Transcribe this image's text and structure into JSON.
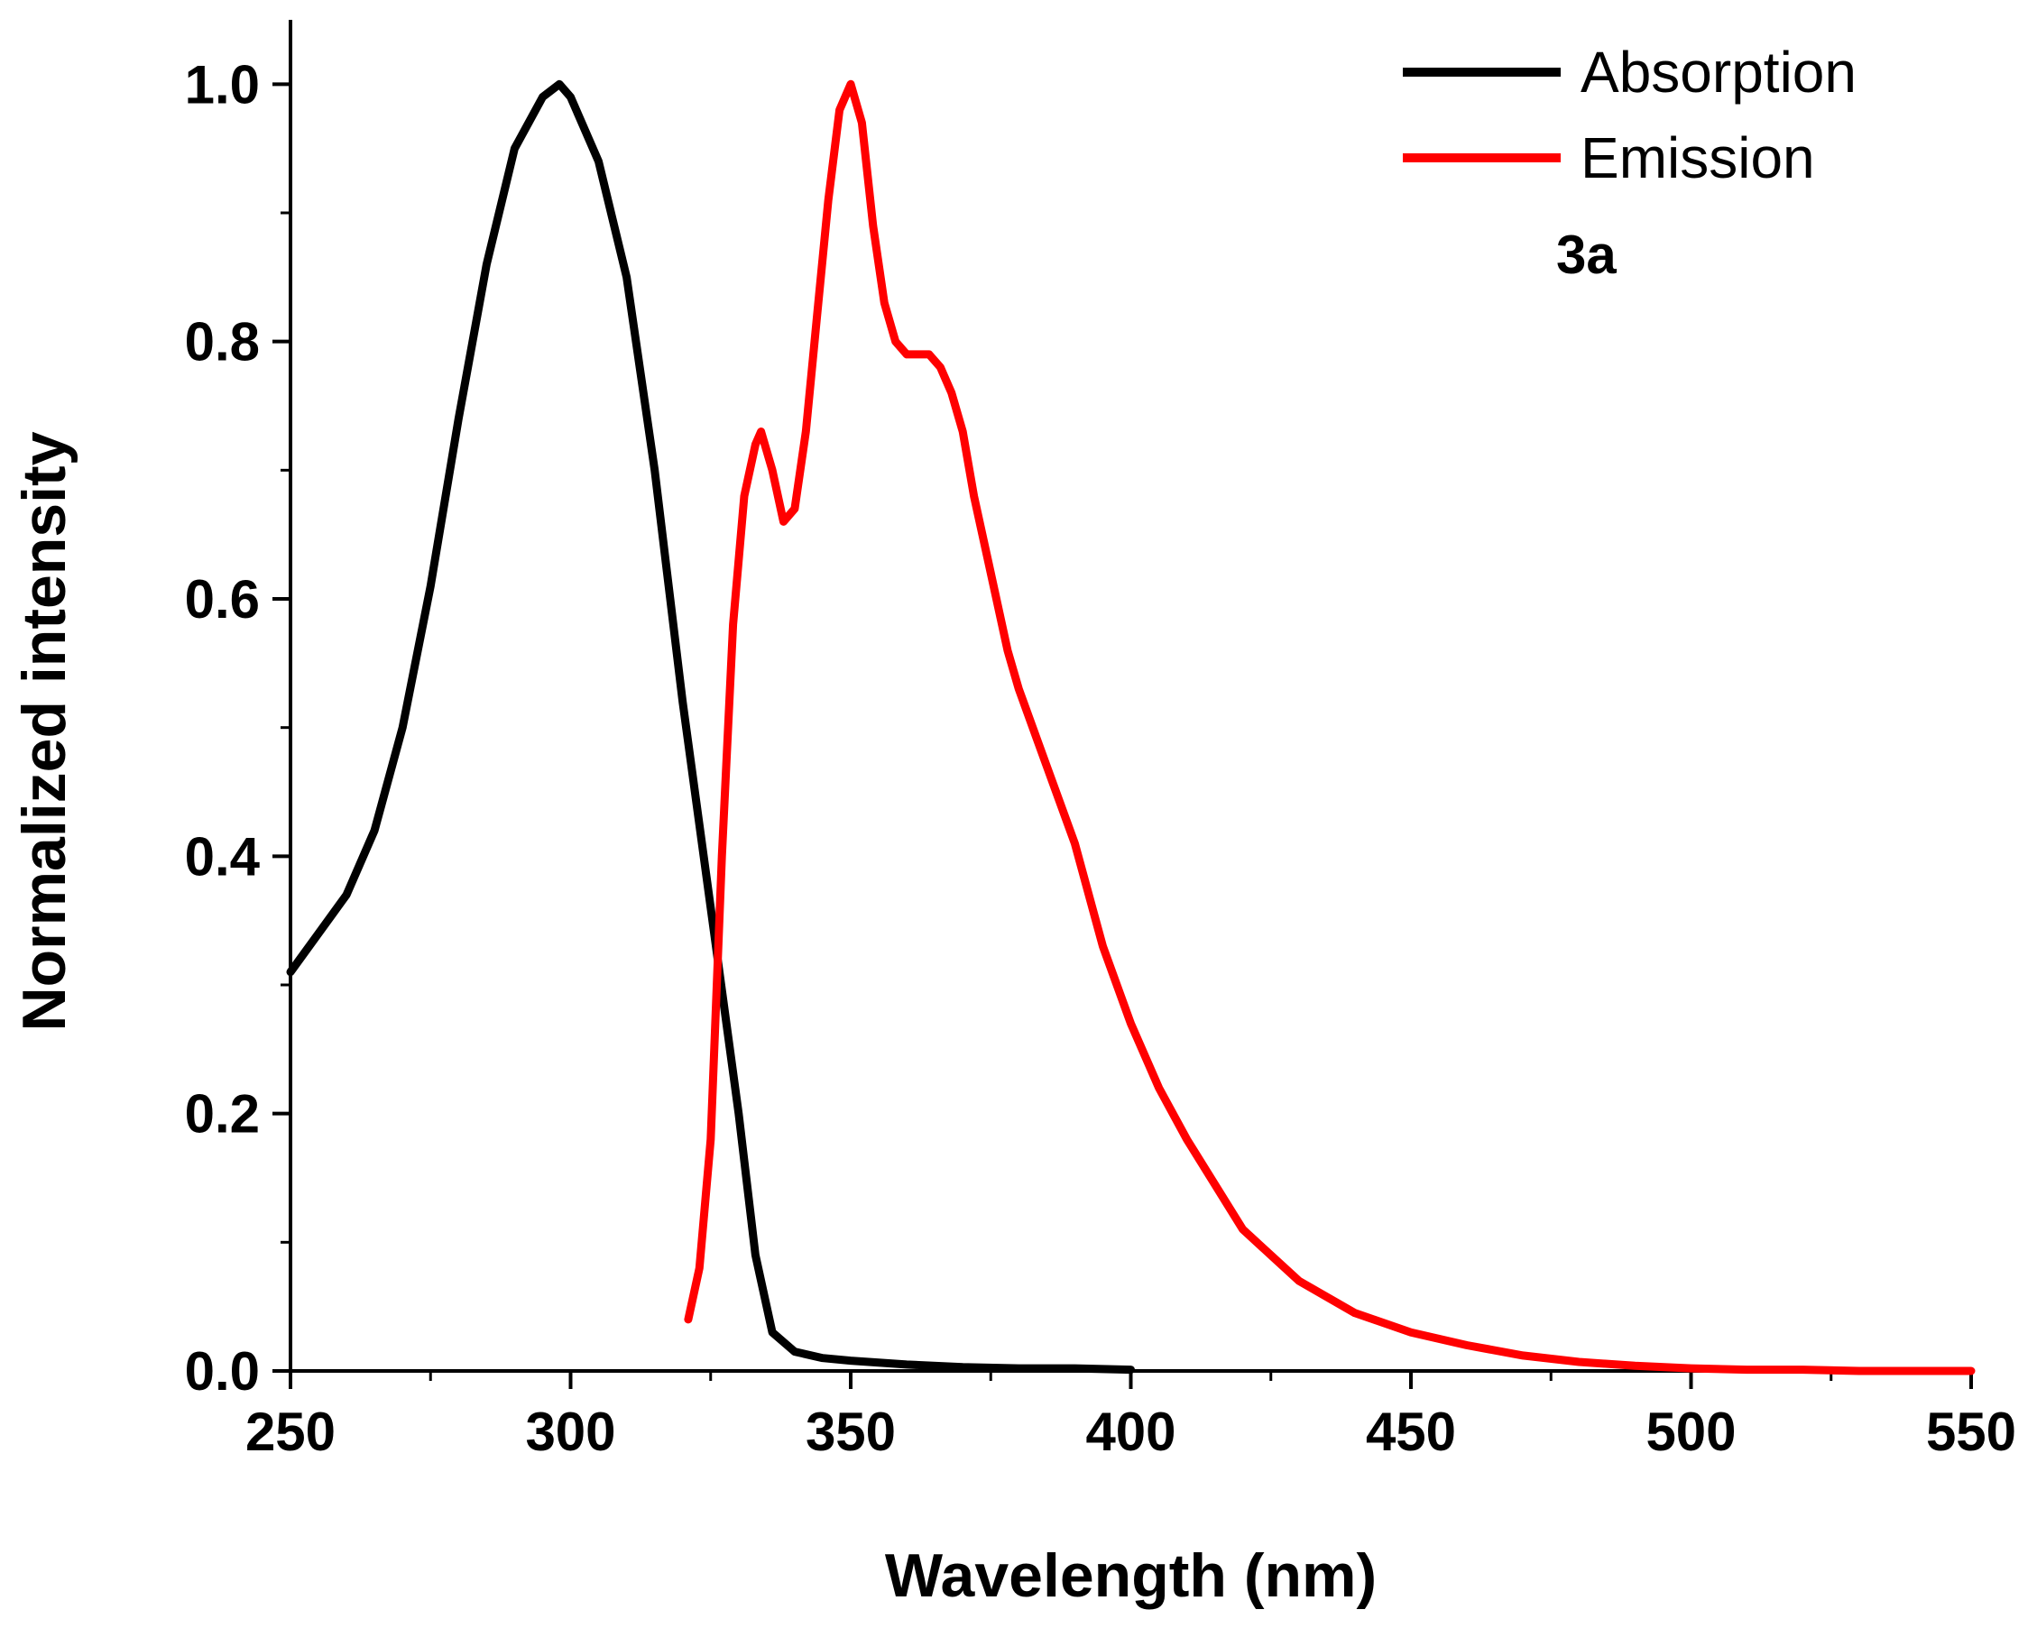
{
  "chart_data": {
    "type": "line",
    "title": "",
    "xlabel": "Wavelength (nm)",
    "ylabel": "Normalized intensity",
    "xlim": [
      250,
      550
    ],
    "ylim": [
      0,
      1.05
    ],
    "x_ticks": [
      250,
      300,
      350,
      400,
      450,
      500,
      550
    ],
    "x_tick_labels": [
      "250",
      "300",
      "350",
      "400",
      "450",
      "500",
      "550"
    ],
    "y_ticks": [
      0.0,
      0.2,
      0.4,
      0.6,
      0.8,
      1.0
    ],
    "y_tick_labels": [
      "0.0",
      "0.2",
      "0.4",
      "0.6",
      "0.8",
      "1.0"
    ],
    "grid": false,
    "legend_position": "top-right",
    "annotation": "3a",
    "series": [
      {
        "name": "Absorption",
        "color": "#000000",
        "x": [
          250,
          255,
          260,
          265,
          270,
          275,
          280,
          285,
          290,
          295,
          298,
          300,
          305,
          310,
          315,
          320,
          325,
          330,
          333,
          336,
          340,
          345,
          350,
          360,
          370,
          380,
          390,
          400
        ],
        "y": [
          0.31,
          0.34,
          0.37,
          0.42,
          0.5,
          0.61,
          0.74,
          0.86,
          0.95,
          0.99,
          1.0,
          0.99,
          0.94,
          0.85,
          0.7,
          0.52,
          0.36,
          0.2,
          0.09,
          0.03,
          0.015,
          0.01,
          0.008,
          0.005,
          0.003,
          0.002,
          0.002,
          0.001
        ]
      },
      {
        "name": "Emission",
        "color": "#ff0000",
        "x": [
          321,
          323,
          325,
          327,
          329,
          331,
          333,
          334,
          336,
          338,
          340,
          342,
          344,
          346,
          348,
          350,
          352,
          354,
          356,
          358,
          360,
          362,
          364,
          366,
          368,
          370,
          372,
          375,
          378,
          380,
          385,
          390,
          395,
          400,
          405,
          410,
          420,
          430,
          440,
          450,
          460,
          470,
          480,
          490,
          500,
          510,
          520,
          530,
          540,
          550
        ],
        "y": [
          0.04,
          0.08,
          0.18,
          0.4,
          0.58,
          0.68,
          0.72,
          0.73,
          0.7,
          0.66,
          0.67,
          0.73,
          0.82,
          0.91,
          0.98,
          1.0,
          0.97,
          0.89,
          0.83,
          0.8,
          0.79,
          0.79,
          0.79,
          0.78,
          0.76,
          0.73,
          0.68,
          0.62,
          0.56,
          0.53,
          0.47,
          0.41,
          0.33,
          0.27,
          0.22,
          0.18,
          0.11,
          0.07,
          0.045,
          0.03,
          0.02,
          0.012,
          0.007,
          0.004,
          0.002,
          0.001,
          0.001,
          0.0,
          0.0,
          0.0
        ]
      }
    ]
  }
}
